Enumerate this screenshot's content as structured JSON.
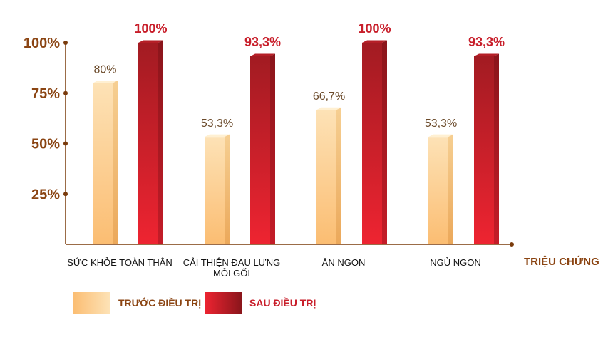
{
  "chart_data": {
    "type": "bar",
    "xlabel": "TRIỆU CHỨNG",
    "ylim": [
      0,
      100
    ],
    "yticks": [
      "25%",
      "50%",
      "75%",
      "100%"
    ],
    "ytick_values": [
      25,
      50,
      75,
      100
    ],
    "grid": false,
    "legend_position": "bottom-left",
    "categories": [
      [
        "SỨC KHỎE TOÀN THÂN"
      ],
      [
        "CẢI THIỆN ĐAU LƯNG",
        "MỎI GỐI"
      ],
      [
        "ĂN NGON"
      ],
      [
        "NGỦ NGON"
      ]
    ],
    "series": [
      {
        "name": "TRƯỚC ĐIỀU TRỊ",
        "values": [
          80,
          53.3,
          66.7,
          53.3
        ],
        "labels": [
          "80%",
          "53,3%",
          "66,7%",
          "53,3%"
        ],
        "color": "#fcc47a"
      },
      {
        "name": "SAU ĐIỀU TRỊ",
        "values": [
          100,
          93.3,
          100,
          93.3
        ],
        "labels": [
          "100%",
          "93,3%",
          "100%",
          "93,3%"
        ],
        "color": "#d42030"
      }
    ],
    "axis_color": "#7a3b0c"
  }
}
